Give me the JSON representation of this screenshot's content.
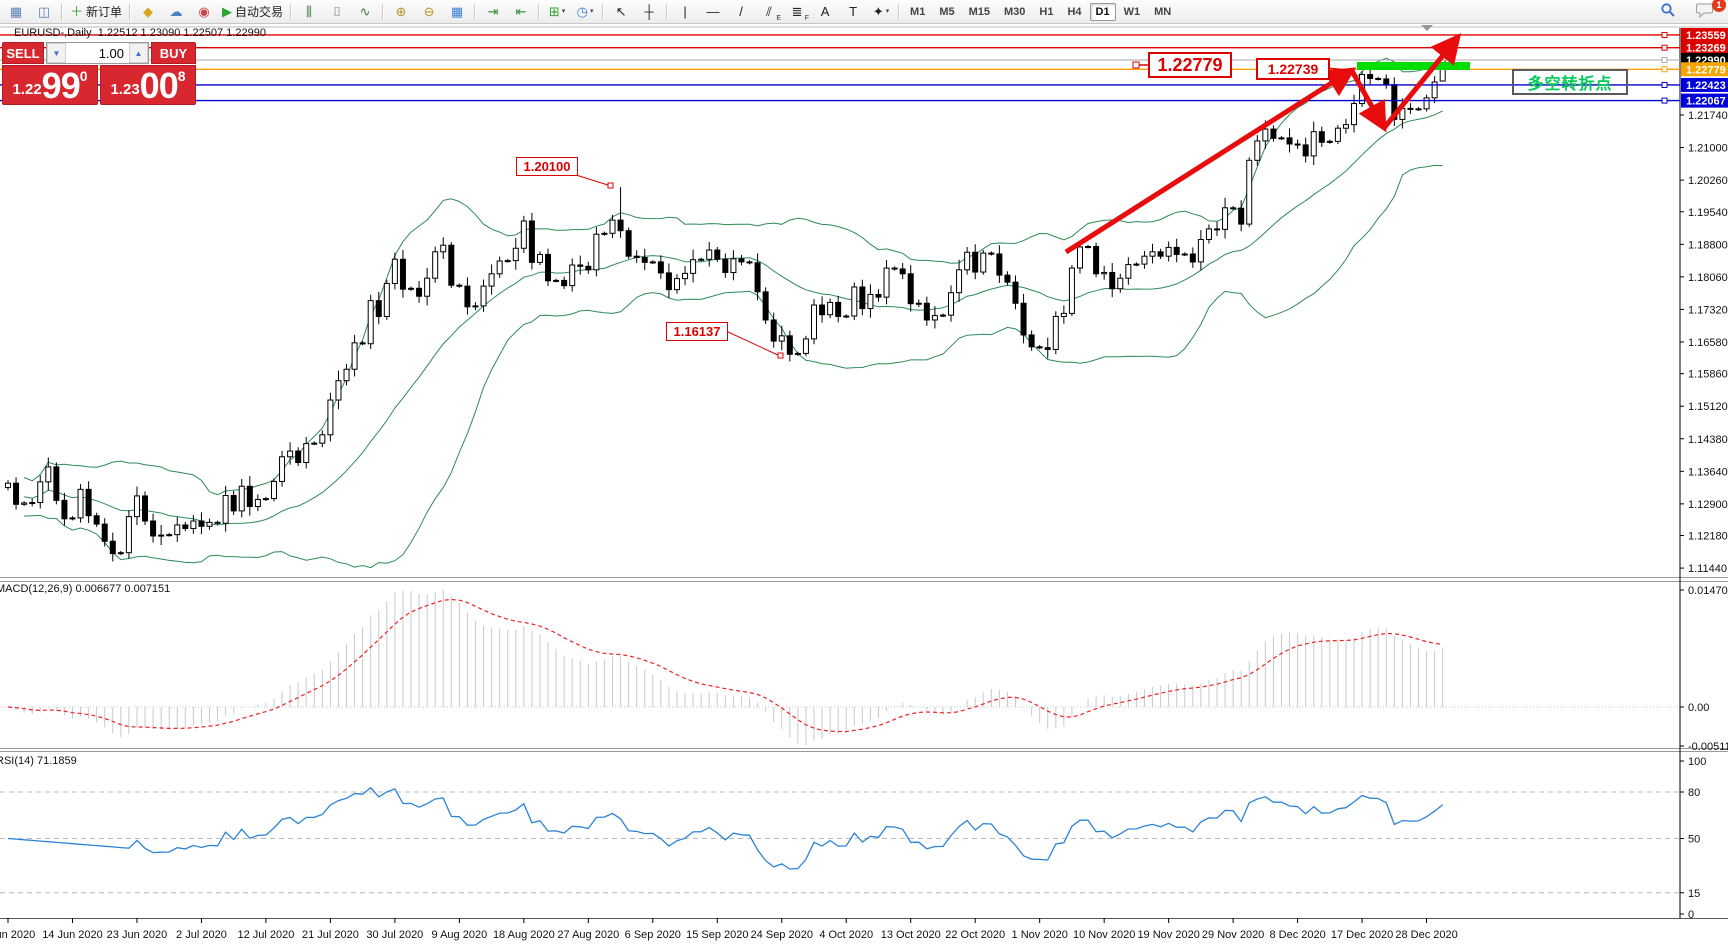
{
  "toolbar": {
    "groups": [
      [
        {
          "name": "charts-window-icon",
          "glyph": "▦",
          "color": "#5a7fb5"
        },
        {
          "name": "profiles-icon",
          "glyph": "◫",
          "color": "#5a7fb5"
        }
      ],
      [
        {
          "name": "new-order-button",
          "glyph": "＋",
          "color": "#2fa32f",
          "label": "新订单"
        }
      ],
      [
        {
          "name": "market-icon",
          "glyph": "◆",
          "color": "#d6a51c"
        },
        {
          "name": "community-icon",
          "glyph": "☁",
          "color": "#4a80c0"
        },
        {
          "name": "signals-icon",
          "glyph": "◉",
          "color": "#cc4444"
        },
        {
          "name": "autotrade-button",
          "glyph": "▶",
          "color": "#2fa32f",
          "label": "自动交易"
        }
      ],
      [
        {
          "name": "bar-chart-icon",
          "glyph": "⫼",
          "color": "#3d7a3d"
        },
        {
          "name": "candle-chart-icon",
          "glyph": "⌷",
          "color": "#3d7a3d"
        },
        {
          "name": "line-chart-icon",
          "glyph": "∿",
          "color": "#3d7a3d"
        }
      ],
      [
        {
          "name": "zoom-in-icon",
          "glyph": "⊕",
          "color": "#b8952a"
        },
        {
          "name": "zoom-out-icon",
          "glyph": "⊖",
          "color": "#b8952a"
        },
        {
          "name": "tile-windows-icon",
          "glyph": "▦",
          "color": "#3a7fd5"
        }
      ],
      [
        {
          "name": "auto-scroll-icon",
          "glyph": "⇥",
          "color": "#2f8f2f"
        },
        {
          "name": "chart-shift-icon",
          "glyph": "⇤",
          "color": "#2f8f2f"
        }
      ],
      [
        {
          "name": "new-chart-button",
          "glyph": "⊞",
          "color": "#2fa32f",
          "dropdown": true
        },
        {
          "name": "period-clock-button",
          "glyph": "◷",
          "color": "#3a7fd5",
          "dropdown": true
        }
      ],
      [
        {
          "name": "cursor-icon",
          "glyph": "↖",
          "color": "#222222"
        },
        {
          "name": "crosshair-icon",
          "glyph": "┼",
          "color": "#222222"
        }
      ],
      [
        {
          "name": "vertical-line-icon",
          "glyph": "|",
          "color": "#222222"
        },
        {
          "name": "horizontal-line-icon",
          "glyph": "—",
          "color": "#222222"
        },
        {
          "name": "trendline-icon",
          "glyph": "/",
          "color": "#222222"
        },
        {
          "name": "channel-icon",
          "glyph": "⫽",
          "color": "#222222",
          "sub": "E"
        },
        {
          "name": "fibonacci-icon",
          "glyph": "≣",
          "color": "#222222",
          "sub": "F"
        },
        {
          "name": "text-icon",
          "glyph": "A",
          "color": "#222222"
        },
        {
          "name": "text-label-icon",
          "glyph": "T",
          "color": "#222222"
        },
        {
          "name": "arrows-icon",
          "glyph": "✦",
          "color": "#222222",
          "dropdown": true
        }
      ]
    ],
    "timeframes": [
      "M1",
      "M5",
      "M15",
      "M30",
      "H1",
      "H4",
      "D1",
      "W1",
      "MN"
    ],
    "active_timeframe": "D1",
    "notification_badge": "1"
  },
  "chart": {
    "title_line": "EURUSD-,Daily  1.22512 1.23090 1.22507 1.22990",
    "symbol": "EURUSD-",
    "period": "Daily"
  },
  "trade_panel": {
    "sell_label": "SELL",
    "buy_label": "BUY",
    "volume": "1.00",
    "volume_down_icon": "▼",
    "volume_up_icon": "▲",
    "sell_price": {
      "base": "1.22",
      "big": "99",
      "pip": "0"
    },
    "buy_price": {
      "base": "1.23",
      "big": "00",
      "pip": "8"
    }
  },
  "annotations": {
    "resistance1": "1.22779",
    "resistance2": "1.22739",
    "high_label": "1.20100",
    "low_label": "1.16137",
    "note_text": "多空转折点"
  },
  "levels": [
    {
      "label": "1.23559",
      "value": 1.23559,
      "color": "#dd0000",
      "chip_bg": "#dd0000"
    },
    {
      "label": "1.23269",
      "value": 1.23269,
      "color": "#dd0000",
      "chip_bg": "#dd0000"
    },
    {
      "label": "1.22990",
      "value": 1.2299,
      "color": "#a8a8a8",
      "chip_bg": "#000000"
    },
    {
      "label": "1.22779",
      "value": 1.22779,
      "color": "#ffa000",
      "chip_bg": "#f5a400"
    },
    {
      "label": "1.22423",
      "value": 1.22423,
      "color": "#0000cc",
      "chip_bg": "#0000d8"
    },
    {
      "label": "1.22067",
      "value": 1.22067,
      "color": "#0000cc",
      "chip_bg": "#0000d8"
    }
  ],
  "price_axis_ticks": [
    "1.21740",
    "1.21000",
    "1.20260",
    "1.19540",
    "1.18800",
    "1.18060",
    "1.17320",
    "1.16580",
    "1.15860",
    "1.15120",
    "1.14380",
    "1.13640",
    "1.12900",
    "1.12180",
    "1.11440"
  ],
  "date_axis_labels": [
    "4 Jun 2020",
    "14 Jun 2020",
    "23 Jun 2020",
    "2 Jul 2020",
    "12 Jul 2020",
    "21 Jul 2020",
    "30 Jul 2020",
    "9 Aug 2020",
    "18 Aug 2020",
    "27 Aug 2020",
    "6 Sep 2020",
    "15 Sep 2020",
    "24 Sep 2020",
    "4 Oct 2020",
    "13 Oct 2020",
    "22 Oct 2020",
    "1 Nov 2020",
    "10 Nov 2020",
    "19 Nov 2020",
    "29 Nov 2020",
    "8 Dec 2020",
    "17 Dec 2020",
    "28 Dec 2020"
  ],
  "macd_pane": {
    "label_line": "MACD(12,26,9) 0.006677 0.007151",
    "scale_labels": [
      "0.014706",
      "0.00",
      "-0.005113"
    ]
  },
  "rsi_pane": {
    "label_line": "RSI(14) 71.1859",
    "scale_labels": [
      "100",
      "80",
      "50",
      "15",
      "0"
    ],
    "level_lines": [
      80,
      50,
      15
    ]
  },
  "chart_data": {
    "type": "candlestick",
    "symbol": "EURUSD",
    "timeframe": "Daily",
    "indicators": {
      "bollinger_bands": "(20,2)",
      "macd": "(12,26,9)",
      "rsi": "(14)"
    },
    "last_bar_ohlc": {
      "open": 1.22512,
      "high": 1.2309,
      "low": 1.22507,
      "close": 1.2299
    },
    "marked_points": {
      "sep1_high": 1.201,
      "sep25_low": 1.16137,
      "dec17_high": 1.22739
    },
    "closes": [
      1.1337,
      1.1289,
      1.1292,
      1.1293,
      1.134,
      1.1374,
      1.1298,
      1.1256,
      1.1258,
      1.1323,
      1.1263,
      1.1244,
      1.1205,
      1.1177,
      1.1179,
      1.1261,
      1.1308,
      1.1251,
      1.1217,
      1.1219,
      1.122,
      1.1242,
      1.1234,
      1.1251,
      1.1239,
      1.1248,
      1.1246,
      1.1309,
      1.1274,
      1.133,
      1.1284,
      1.13,
      1.1302,
      1.1341,
      1.1397,
      1.141,
      1.1384,
      1.1427,
      1.1428,
      1.1447,
      1.1526,
      1.157,
      1.1596,
      1.1656,
      1.1654,
      1.1752,
      1.1716,
      1.1791,
      1.1846,
      1.1778,
      1.178,
      1.1762,
      1.1803,
      1.1863,
      1.1878,
      1.1787,
      1.1785,
      1.1738,
      1.174,
      1.1785,
      1.1813,
      1.1842,
      1.1843,
      1.1871,
      1.1933,
      1.1839,
      1.1857,
      1.1797,
      1.1798,
      1.1786,
      1.1833,
      1.183,
      1.1822,
      1.1903,
      1.1905,
      1.1935,
      1.1911,
      1.1853,
      1.185,
      1.1839,
      1.184,
      1.1815,
      1.1777,
      1.1802,
      1.1814,
      1.1845,
      1.1846,
      1.1867,
      1.1846,
      1.1816,
      1.1847,
      1.184,
      1.1838,
      1.1772,
      1.1708,
      1.166,
      1.1672,
      1.163,
      1.1632,
      1.1665,
      1.1742,
      1.172,
      1.1748,
      1.1716,
      1.1717,
      1.1783,
      1.1734,
      1.1766,
      1.176,
      1.1826,
      1.1824,
      1.1813,
      1.1745,
      1.1746,
      1.1708,
      1.1718,
      1.1719,
      1.177,
      1.1822,
      1.1862,
      1.1817,
      1.186,
      1.1858,
      1.181,
      1.1794,
      1.1746,
      1.1674,
      1.1647,
      1.1645,
      1.1641,
      1.1716,
      1.1723,
      1.1826,
      1.1874,
      1.1875,
      1.1813,
      1.1816,
      1.1779,
      1.1803,
      1.1834,
      1.1835,
      1.1853,
      1.1863,
      1.1853,
      1.1873,
      1.1857,
      1.1858,
      1.184,
      1.1891,
      1.1915,
      1.1914,
      1.1963,
      1.1962,
      1.1926,
      1.2071,
      1.2115,
      1.2142,
      1.2121,
      1.2122,
      1.2108,
      1.2106,
      1.2081,
      1.2136,
      1.2112,
      1.2114,
      1.2144,
      1.2152,
      1.22,
      1.2266,
      1.2257,
      1.2256,
      1.2243,
      1.2164,
      1.2189,
      1.2187,
      1.2188,
      1.2213,
      1.2249,
      1.2299
    ],
    "sunday_bar_indices": [
      2,
      8,
      14,
      20,
      26,
      32,
      38,
      44,
      50,
      56,
      62,
      68,
      74,
      80,
      86,
      92,
      98,
      104,
      110,
      116,
      122,
      128,
      134,
      140,
      146,
      152,
      158,
      164,
      170,
      175
    ],
    "special_bars": {
      "76": {
        "high": 1.201
      },
      "97": {
        "low": 1.16137
      },
      "168": {
        "high": 1.22739
      },
      "178": {
        "open": 1.22512,
        "high": 1.2309,
        "low": 1.22507,
        "close": 1.2299
      }
    },
    "date_tick_every_n_bars": 8
  },
  "colors": {
    "band_green": "#2e8b57",
    "zigzag_red": "#e80c0c",
    "support_bar_green": "#00dd00",
    "rsi_blue": "#2b83d6",
    "macd_signal_red": "#ee2222",
    "histogram_gray": "#c9c9c9",
    "panel_red": "#d8272e"
  }
}
